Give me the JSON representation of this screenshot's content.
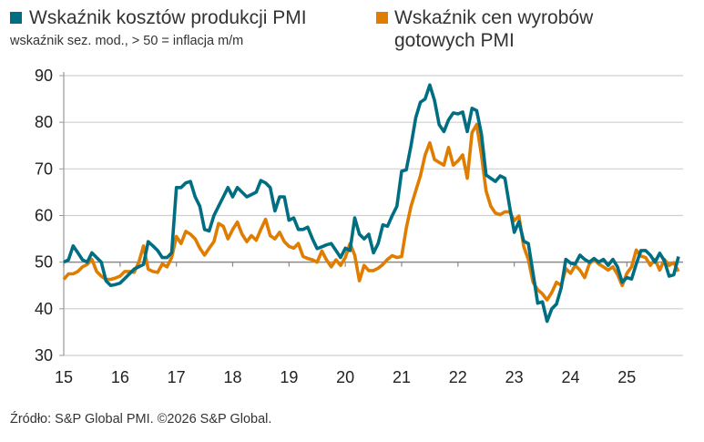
{
  "chart_data": {
    "type": "line",
    "subtitle": "wskaźnik sez. mod., > 50 = inflacja m/m",
    "x_start": "2015-01",
    "x_end": "2025-12",
    "frequency": "monthly",
    "x_ticks": [
      "15",
      "16",
      "17",
      "18",
      "19",
      "20",
      "21",
      "22",
      "23",
      "24",
      "25"
    ],
    "y_ticks": [
      "30",
      "40",
      "50",
      "60",
      "70",
      "80",
      "90"
    ],
    "ylim": [
      30,
      90
    ],
    "reference_line": 50,
    "grid": "horizontal",
    "legend_position": "top",
    "series": [
      {
        "name": "Wskaźnik kosztów produkcji PMI",
        "color": "#006E82",
        "values": [
          50,
          50.5,
          53.5,
          52,
          50.5,
          50,
          52,
          51,
          50,
          46,
          45,
          45.2,
          45.5,
          46.5,
          47.5,
          48.5,
          49,
          49.5,
          54.4,
          53.5,
          52.5,
          51,
          51,
          52,
          66,
          66,
          67,
          67.3,
          64,
          62,
          57,
          56.7,
          60,
          62,
          64,
          66,
          64,
          66,
          65,
          64,
          64.5,
          65,
          67.5,
          67,
          66,
          61,
          64,
          64,
          59,
          59.5,
          57,
          57,
          57.5,
          55,
          52.9,
          53.3,
          53.7,
          54,
          52.5,
          51,
          53,
          52.5,
          59.5,
          56,
          55,
          56,
          52,
          54,
          58,
          57.7,
          60,
          62,
          69.5,
          69.8,
          75,
          81,
          84.3,
          85,
          88,
          84.7,
          79.5,
          78,
          80.5,
          82,
          81.8,
          82.2,
          78,
          83,
          82.5,
          77.5,
          68.7,
          68,
          67.3,
          68.5,
          68,
          62,
          56.4,
          58.7,
          54.5,
          54,
          47.6,
          41.2,
          41.5,
          37.3,
          40,
          41,
          44.5,
          50.6,
          49.8,
          49.6,
          51.5,
          50.6,
          50,
          50.8,
          50,
          50.6,
          49.3,
          50.6,
          49,
          45.7,
          46.7,
          46.4,
          49.6,
          52.5,
          52.5,
          51.5,
          50,
          51.9,
          50.3,
          47,
          47.3,
          51.2
        ]
      },
      {
        "name": "Wskaźnik cen wyrobów gotowych PMI",
        "name_lines": [
          "Wskaźnik cen wyrobów",
          "gotowych PMI"
        ],
        "color": "#E07D00",
        "values": [
          46.3,
          47.5,
          47.5,
          48,
          49,
          49.5,
          50.6,
          48,
          47,
          46.3,
          46.3,
          46.6,
          47,
          48,
          48,
          47.8,
          50,
          53.5,
          48.5,
          48,
          47.8,
          49.6,
          49,
          51,
          55.5,
          54,
          56.6,
          56,
          55,
          53,
          51.5,
          53,
          54.4,
          58.3,
          57.7,
          55,
          57,
          58.6,
          56,
          54.4,
          55.7,
          54.7,
          57,
          59.2,
          55.7,
          55,
          56.4,
          54.4,
          53.4,
          53,
          54,
          51.2,
          50.8,
          50.5,
          50,
          52.4,
          50.5,
          49,
          50.5,
          49.3,
          51,
          54,
          51.5,
          46,
          49.3,
          48.2,
          48.2,
          48.7,
          49.5,
          50.6,
          51.4,
          51,
          51.2,
          57.3,
          62,
          65.3,
          68.5,
          73,
          75.6,
          72,
          71.4,
          70.8,
          74.6,
          70.8,
          71.7,
          73,
          68,
          77.8,
          79.5,
          73,
          65.3,
          62,
          60.5,
          60.2,
          60.8,
          60.8,
          58.9,
          59.9,
          53.4,
          50.6,
          45.7,
          44.1,
          43.2,
          41.9,
          43.5,
          45.7,
          45,
          48.6,
          47.6,
          49.3,
          48.3,
          46.7,
          49.6,
          50.6,
          49.6,
          49,
          48.3,
          49,
          47.4,
          45,
          47.6,
          49,
          52.6,
          51.3,
          51,
          49.3,
          50.6,
          48.3,
          50.6,
          49.3,
          49.9,
          48
        ]
      }
    ]
  },
  "footer": "Źródło: S&P Global PMI. ©2026 S&P Global."
}
